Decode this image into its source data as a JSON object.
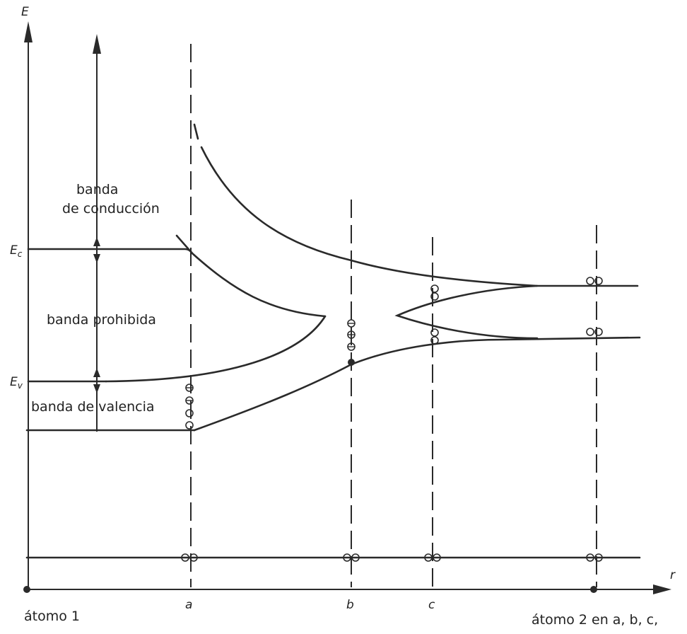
{
  "axes": {
    "energy_label": "E",
    "distance_label": "r"
  },
  "levels": {
    "ec": "E",
    "ec_sub": "c",
    "ev": "E",
    "ev_sub": "v"
  },
  "bands": {
    "conduction_line1": "banda",
    "conduction_line2": "de conducción",
    "forbidden": "banda prohibida",
    "valence": "banda de valencia"
  },
  "positions": {
    "a": "a",
    "b": "b",
    "c": "c"
  },
  "atoms": {
    "atom1": "átomo 1",
    "atom2": "átomo 2 en a, b, c,"
  },
  "colors": {
    "ink": "#2a2a2a",
    "background": "#ffffff"
  }
}
